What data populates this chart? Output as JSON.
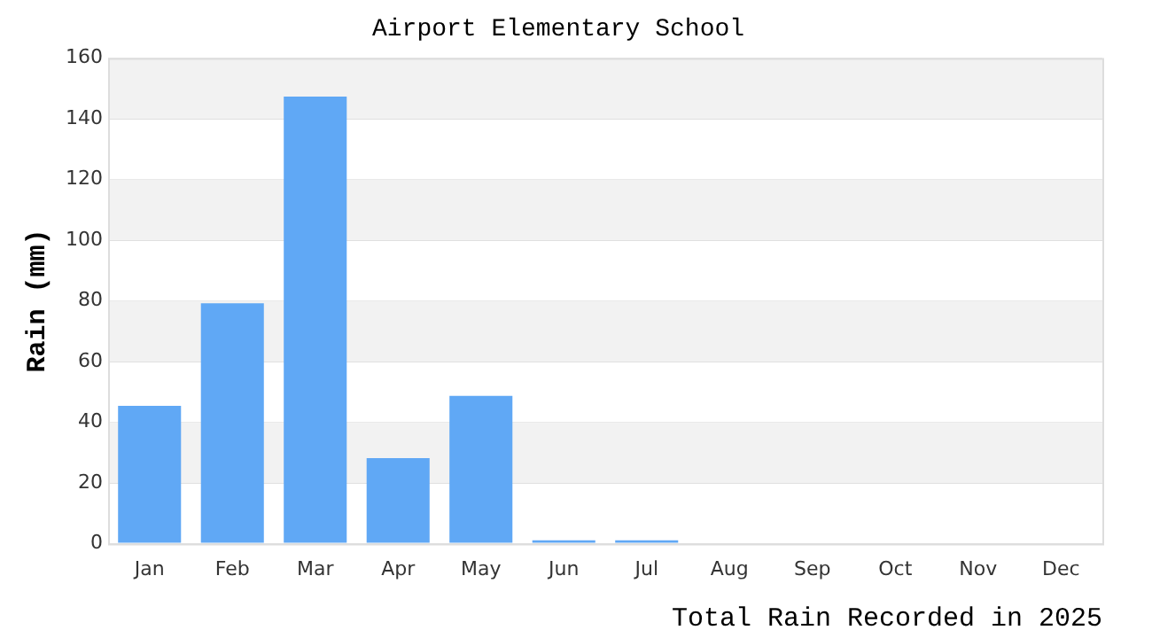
{
  "chart_data": {
    "type": "bar",
    "title": "Airport Elementary School",
    "xlabel": "Total Rain Recorded in 2025",
    "ylabel": "Rain (mm)",
    "categories": [
      "Jan",
      "Feb",
      "Mar",
      "Apr",
      "May",
      "Jun",
      "Jul",
      "Aug",
      "Sep",
      "Oct",
      "Nov",
      "Dec"
    ],
    "values": [
      45.4,
      79.2,
      147.3,
      28.2,
      48.7,
      1.1,
      1.1,
      0,
      0,
      0,
      0,
      0
    ],
    "color": "#60a8f5",
    "ylim": [
      0,
      160
    ],
    "yticks": [
      0,
      20,
      40,
      60,
      80,
      100,
      120,
      140,
      160
    ],
    "grid": "y",
    "legend": false
  }
}
